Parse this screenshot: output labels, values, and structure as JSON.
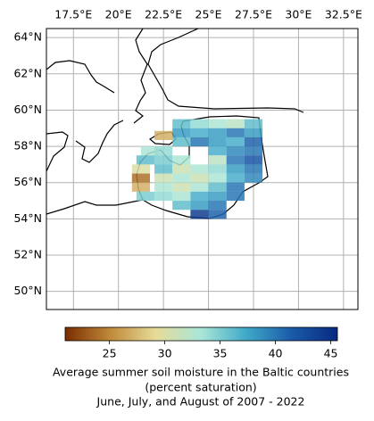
{
  "chart_data": {
    "type": "map",
    "xlim": [
      16,
      33.3
    ],
    "ylim": [
      49,
      64.5
    ],
    "xticks": [
      {
        "value": 17.5,
        "label": "17.5°E"
      },
      {
        "value": 20,
        "label": "20°E"
      },
      {
        "value": 22.5,
        "label": "22.5°E"
      },
      {
        "value": 25,
        "label": "25°E"
      },
      {
        "value": 27.5,
        "label": "27.5°E"
      },
      {
        "value": 30,
        "label": "30°E"
      },
      {
        "value": 32.5,
        "label": "32.5°E"
      }
    ],
    "yticks": [
      {
        "value": 50,
        "label": "50°N"
      },
      {
        "value": 52,
        "label": "52°N"
      },
      {
        "value": 54,
        "label": "54°N"
      },
      {
        "value": 56,
        "label": "56°N"
      },
      {
        "value": 58,
        "label": "58°N"
      },
      {
        "value": 60,
        "label": "60°N"
      },
      {
        "value": 62,
        "label": "62°N"
      },
      {
        "value": 64,
        "label": "64°N"
      }
    ],
    "grid": true,
    "lon": [
      23.5,
      24.5,
      25.5,
      26.5,
      27.5,
      22.5,
      23.5,
      24.5,
      25.5,
      26.5,
      27.5,
      23.5,
      24.5,
      25.5,
      26.5,
      27.5,
      21.75,
      22.5,
      25.5,
      26.5,
      27.5,
      21.5,
      22.5,
      23.5,
      25.5,
      26.5,
      27.5,
      21.25,
      22.5,
      23.5,
      24.5,
      25.5,
      26.5,
      27.5,
      21.25,
      22.5,
      23.5,
      24.5,
      25.5,
      26.5,
      27.5,
      21.25,
      22.5,
      23.5,
      24.5,
      25.5,
      26.5,
      21.5,
      22.5,
      23.5,
      24.5,
      25.5,
      26.5,
      23.5,
      24.5,
      25.5,
      24.5,
      25.5
    ],
    "lat": [
      59.25,
      59.25,
      59.25,
      59.25,
      59.25,
      58.6,
      58.75,
      58.75,
      58.75,
      58.75,
      58.75,
      58.25,
      58.25,
      58.25,
      58.25,
      58.25,
      57.75,
      57.75,
      57.75,
      57.75,
      57.75,
      57.25,
      57.25,
      57.25,
      57.25,
      57.25,
      57.25,
      56.75,
      56.75,
      56.75,
      56.75,
      56.75,
      56.75,
      56.75,
      56.25,
      56.25,
      56.25,
      56.25,
      56.25,
      56.25,
      56.25,
      55.75,
      55.75,
      55.75,
      55.75,
      55.75,
      55.75,
      55.25,
      55.25,
      55.25,
      55.25,
      55.25,
      55.25,
      54.75,
      54.75,
      54.75,
      54.25,
      54.25
    ],
    "values": [
      36,
      34,
      33,
      32,
      36,
      27,
      38,
      37,
      38,
      40,
      38,
      36,
      40,
      38,
      37,
      41,
      33,
      34,
      37,
      39,
      40,
      36,
      35,
      33,
      32,
      40,
      42,
      30,
      36,
      31,
      33,
      34,
      38,
      40,
      24,
      31,
      33,
      31,
      33,
      37,
      39,
      27,
      33,
      31,
      33,
      36,
      40,
      35,
      34,
      33,
      37,
      38,
      40,
      36,
      38,
      40,
      44,
      41
    ],
    "colorbar": {
      "clim": [
        21,
        45.6
      ],
      "ticks": [
        25,
        30,
        35,
        40,
        45
      ],
      "colormap": [
        "#7a2d00",
        "#c08a3a",
        "#e6dc98",
        "#a8e6d8",
        "#3fa8c8",
        "#1a5aa8",
        "#082a80"
      ],
      "label": [
        "Average summer soil moisture in the Baltic countries",
        "(percent saturation)",
        "June, July, and August of 2007 - 2022"
      ]
    }
  }
}
